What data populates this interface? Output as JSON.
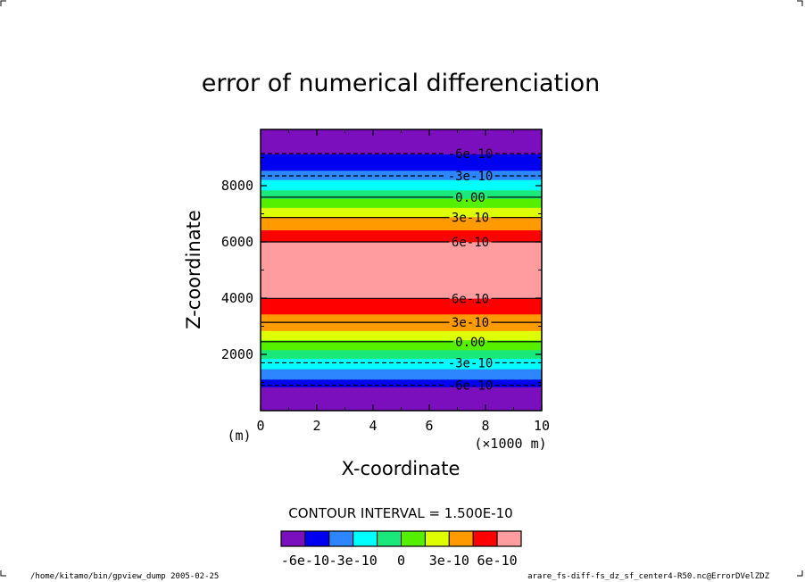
{
  "chart_data": {
    "type": "heatmap",
    "title": "error of numerical differenciation",
    "xlabel": "X-coordinate",
    "ylabel": "Z-coordinate",
    "x_unit_left": "(m)",
    "x_unit_right": "(×1000 m)",
    "xlim": [
      0,
      10
    ],
    "ylim": [
      0,
      10000
    ],
    "x_ticks": [
      "0",
      "2",
      "4",
      "6",
      "8",
      "10"
    ],
    "x_tick_values": [
      0,
      2,
      4,
      6,
      8,
      10
    ],
    "y_ticks": [
      "2000",
      "4000",
      "6000",
      "8000"
    ],
    "y_tick_values": [
      2000,
      4000,
      6000,
      8000
    ],
    "bands": [
      {
        "z0": 0,
        "z1": 850,
        "color": "#7b0ebd"
      },
      {
        "z0": 850,
        "z1": 1120,
        "color": "#0000f0"
      },
      {
        "z0": 1120,
        "z1": 1490,
        "color": "#2e86ff"
      },
      {
        "z0": 1490,
        "z1": 1860,
        "color": "#00ffff"
      },
      {
        "z0": 1860,
        "z1": 2170,
        "color": "#1ae87a"
      },
      {
        "z0": 2170,
        "z1": 2520,
        "color": "#54f000"
      },
      {
        "z0": 2520,
        "z1": 2850,
        "color": "#ddff00"
      },
      {
        "z0": 2850,
        "z1": 3440,
        "color": "#ff9a00"
      },
      {
        "z0": 3440,
        "z1": 4000,
        "color": "#ff0000"
      },
      {
        "z0": 4000,
        "z1": 6010,
        "color": "#ff9ca0"
      },
      {
        "z0": 6010,
        "z1": 6430,
        "color": "#ff0000"
      },
      {
        "z0": 6430,
        "z1": 6900,
        "color": "#ff9a00"
      },
      {
        "z0": 6900,
        "z1": 7230,
        "color": "#ddff00"
      },
      {
        "z0": 7230,
        "z1": 7550,
        "color": "#54f000"
      },
      {
        "z0": 7550,
        "z1": 7850,
        "color": "#1ae87a"
      },
      {
        "z0": 7850,
        "z1": 8220,
        "color": "#00ffff"
      },
      {
        "z0": 8220,
        "z1": 8550,
        "color": "#2e86ff"
      },
      {
        "z0": 8550,
        "z1": 9130,
        "color": "#0000f0"
      },
      {
        "z0": 9130,
        "z1": 10000,
        "color": "#7b0ebd"
      }
    ],
    "contours": [
      {
        "z": 900,
        "dashed": true,
        "label": "-6e-10"
      },
      {
        "z": 1700,
        "dashed": true,
        "label": "-3e-10"
      },
      {
        "z": 2450,
        "dashed": false,
        "label": "0.00"
      },
      {
        "z": 3140,
        "dashed": false,
        "label": "3e-10"
      },
      {
        "z": 3990,
        "dashed": false,
        "label": "6e-10"
      },
      {
        "z": 6000,
        "dashed": false,
        "label": "6e-10"
      },
      {
        "z": 6870,
        "dashed": false,
        "label": "3e-10"
      },
      {
        "z": 7590,
        "dashed": false,
        "label": "0.00"
      },
      {
        "z": 8350,
        "dashed": true,
        "label": "-3e-10"
      },
      {
        "z": 9140,
        "dashed": true,
        "label": "-6e-10"
      }
    ],
    "contour_interval": "CONTOUR INTERVAL = 1.500E-10",
    "colorbar": {
      "colors": [
        "#7b0ebd",
        "#0000f0",
        "#2e86ff",
        "#00ffff",
        "#1ae87a",
        "#54f000",
        "#ddff00",
        "#ff9a00",
        "#ff0000",
        "#ff9ca0"
      ],
      "labels": [
        "-6e-10",
        "-3e-10",
        "0",
        "3e-10",
        "6e-10"
      ]
    }
  },
  "footer": {
    "left": "/home/kitamo/bin/gpview_dump  2005-02-25",
    "right": "arare_fs-diff-fs_dz_sf_center4-R50.nc@ErrorDVelZDZ"
  }
}
